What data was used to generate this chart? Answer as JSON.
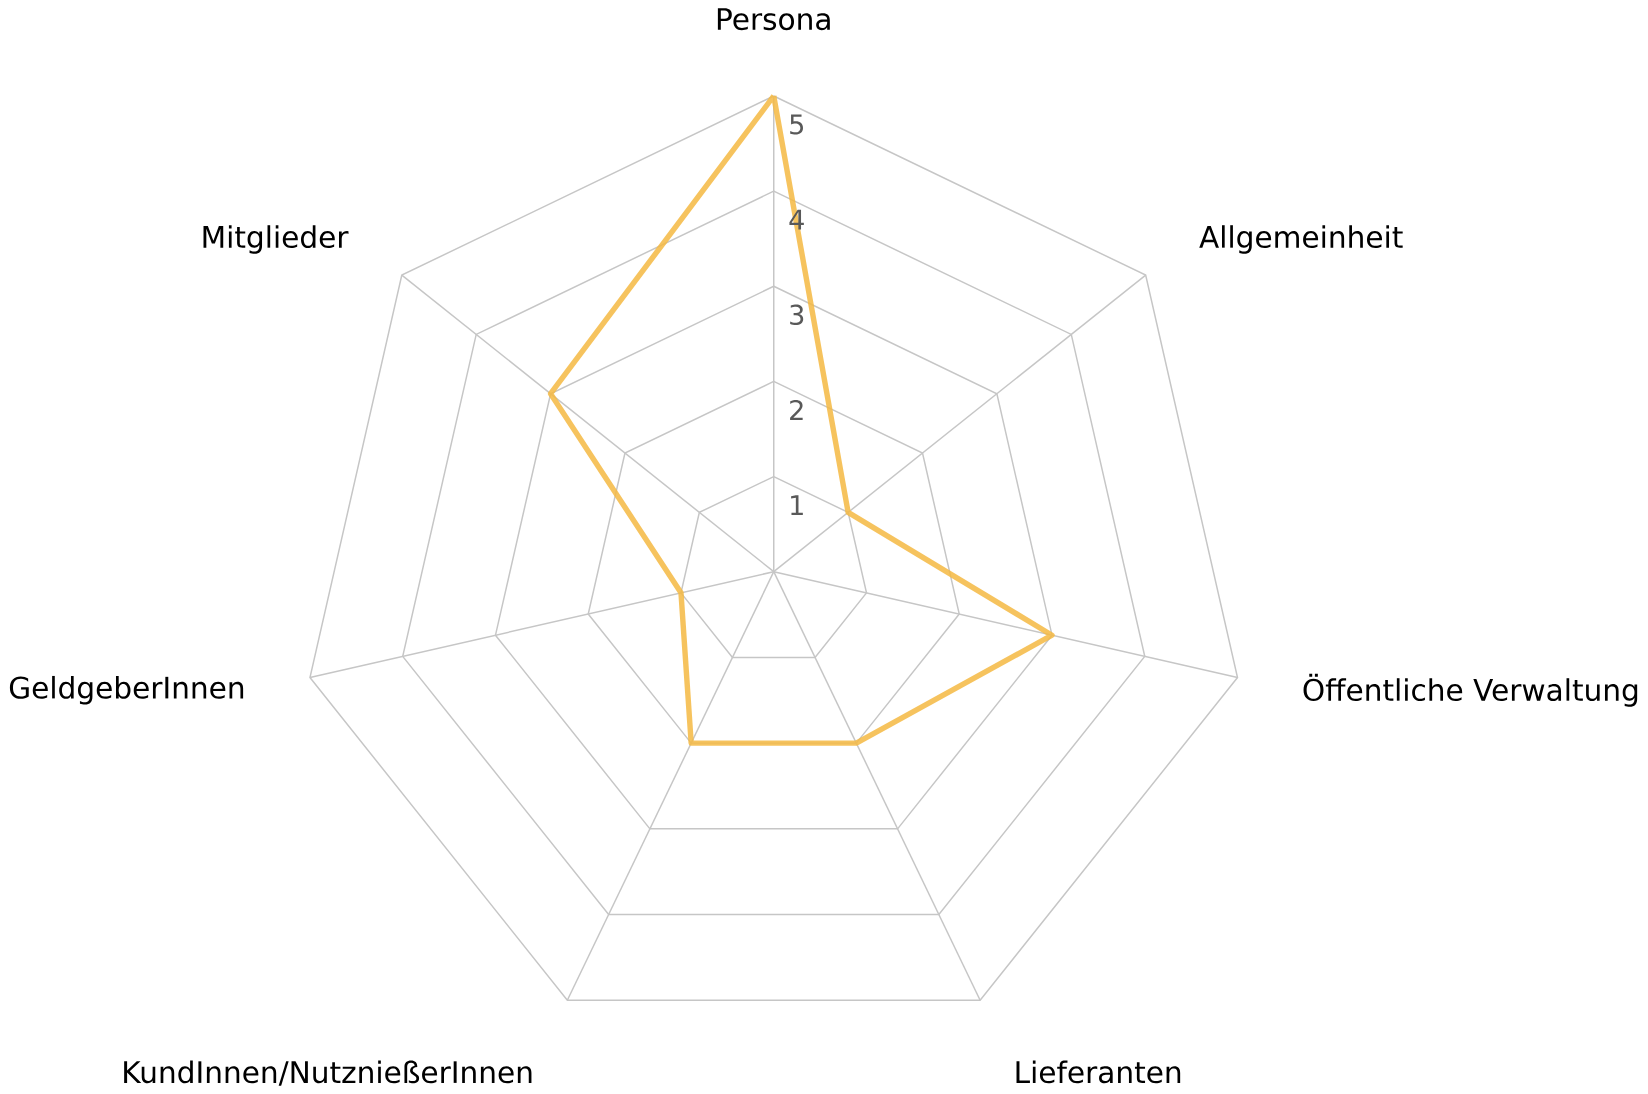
{
  "chart_data": {
    "type": "radar",
    "categories": [
      "Persona",
      "Allgemeinheit",
      "Öffentliche Verwaltung",
      "Lieferanten",
      "KundInnen/NutznießerInnen",
      "GeldgeberInnen",
      "Mitglieder"
    ],
    "series": [
      {
        "color": "#f5b942",
        "values": [
          5,
          1,
          3,
          2,
          2,
          1,
          3
        ]
      }
    ],
    "ylim": [
      0,
      5
    ],
    "yticks": [
      1,
      2,
      3,
      4,
      5
    ],
    "grid": true
  }
}
